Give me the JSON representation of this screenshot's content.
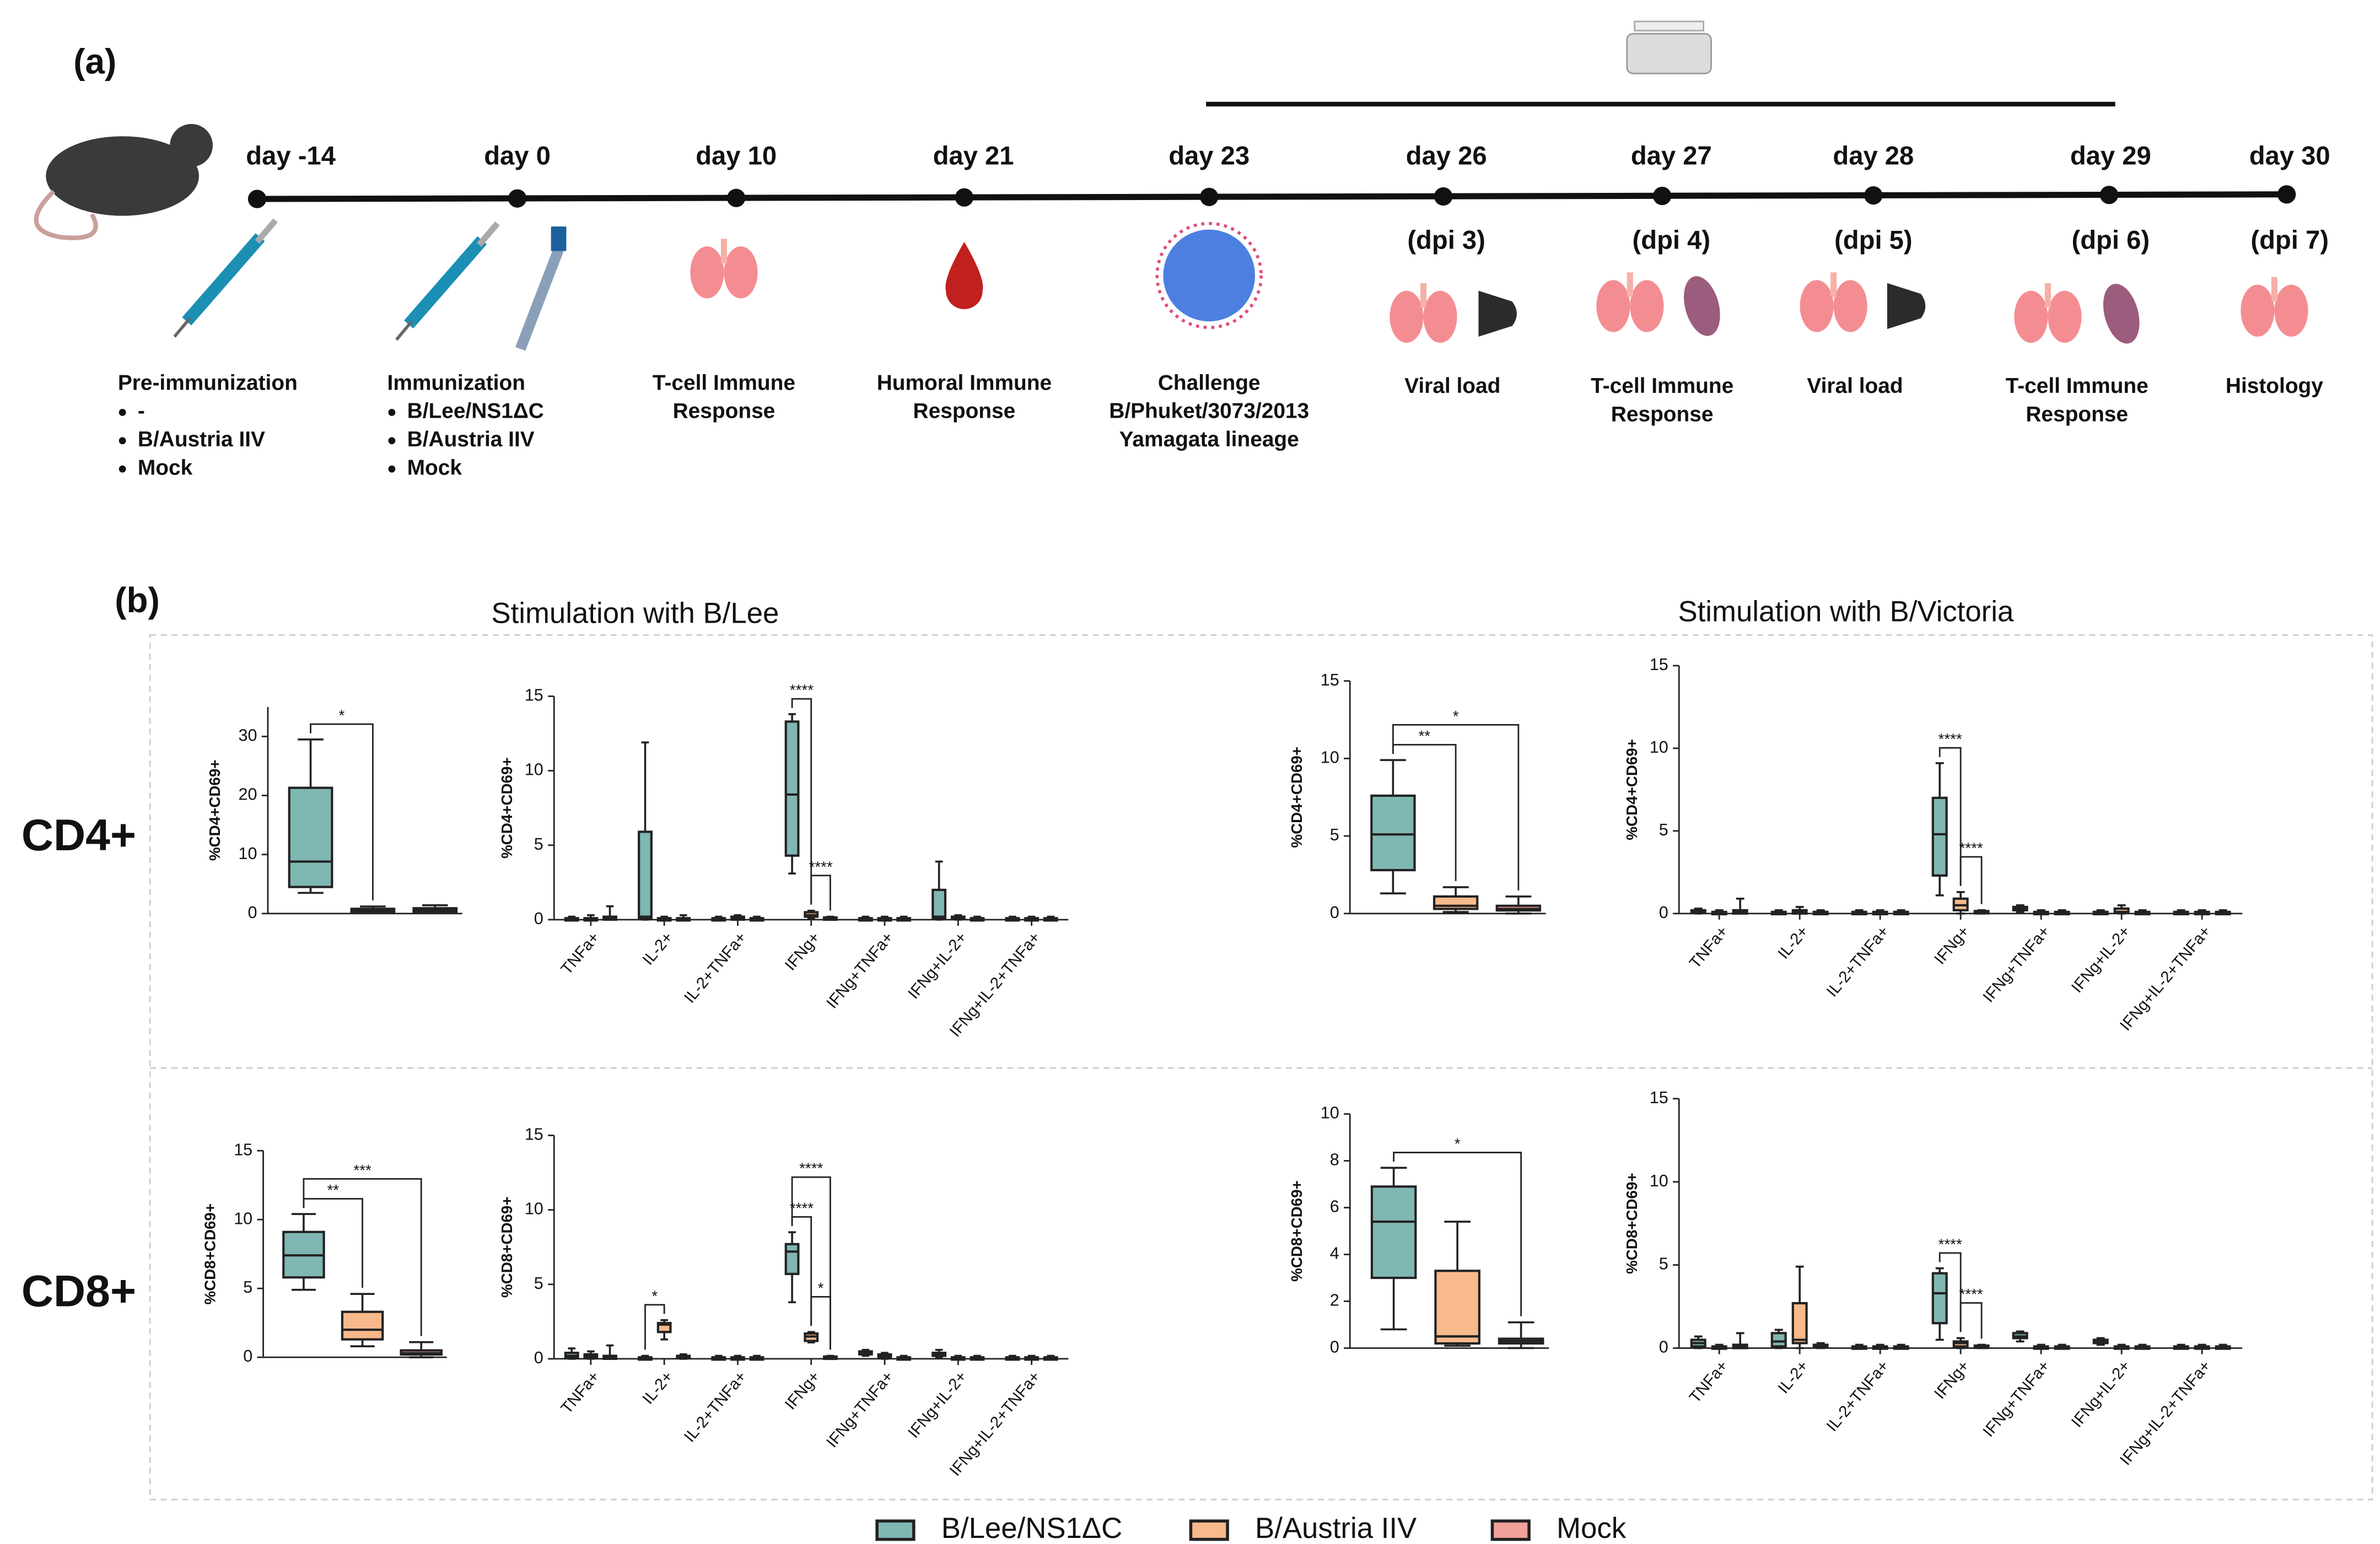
{
  "panel_labels": [
    "(a)",
    "(b)"
  ],
  "timeline": {
    "events": [
      {
        "day": "day -14",
        "lines": [
          "Pre-immunization"
        ],
        "bullets": [
          "-",
          "B/Austria IIV",
          "Mock"
        ]
      },
      {
        "day": "day 0",
        "lines": [
          "Immunization"
        ],
        "bullets": [
          "B/Lee/NS1ΔC",
          "B/Austria IIV",
          "Mock"
        ]
      },
      {
        "day": "day 10",
        "lines": [
          "T-cell Immune",
          "Response"
        ]
      },
      {
        "day": "day 21",
        "lines": [
          "Humoral  Immune",
          "Response"
        ]
      },
      {
        "day": "day 23",
        "lines": [
          "Challenge",
          "B/Phuket/3073/2013",
          "Yamagata lineage"
        ]
      },
      {
        "day": "day 26",
        "dpi": "(dpi 3)",
        "lines": [
          "Viral load"
        ]
      },
      {
        "day": "day 27",
        "dpi": "(dpi 4)",
        "lines": [
          "T-cell Immune",
          "Response"
        ]
      },
      {
        "day": "day 28",
        "dpi": "(dpi 5)",
        "lines": [
          "Viral load"
        ]
      },
      {
        "day": "day 29",
        "dpi": "(dpi 6)",
        "lines": [
          "T-cell Immune",
          "Response"
        ]
      },
      {
        "day": "day 30",
        "dpi": "(dpi 7)",
        "lines": [
          "Histology"
        ]
      }
    ]
  },
  "column_titles": [
    "Stimulation with B/Lee",
    "Stimulation with B/Victoria"
  ],
  "row_labels": [
    "CD4+",
    "CD8+"
  ],
  "legend": [
    {
      "name": "B/Lee/NS1ΔC",
      "color": "#7fb7b3"
    },
    {
      "name": "B/Austria IIV",
      "color": "#f8b98b"
    },
    {
      "name": "Mock",
      "color": "#f2a19b"
    }
  ],
  "chart_data": [
    {
      "type": "box",
      "ylabel": "%CD4+CD69+",
      "ylim": [
        0,
        35
      ],
      "yticks": [
        0,
        10,
        20,
        30
      ],
      "series": [
        {
          "values": [
            [
              3.5,
              4.5,
              8.8,
              21.3,
              29.5
            ]
          ]
        },
        {
          "values": [
            [
              0.1,
              0.3,
              0.5,
              0.8,
              1.2
            ]
          ]
        },
        {
          "values": [
            [
              0.1,
              0.3,
              0.6,
              0.9,
              1.4
            ]
          ]
        }
      ],
      "annotations": [
        {
          "text": "*",
          "category": 0,
          "groups": [
            0,
            1
          ]
        }
      ]
    },
    {
      "type": "box",
      "ylabel": "%CD4+CD69+",
      "ylim": [
        0,
        15
      ],
      "yticks": [
        0,
        5,
        10,
        15
      ],
      "categories": [
        "TNFa+",
        "IL-2+",
        "IL-2+TNFa+",
        "IFNg+",
        "IFNg+TNFa+",
        "IFNg+IL-2+",
        "IFNg+IL-2+TNFa+"
      ],
      "series": [
        {
          "values": [
            [
              0,
              0,
              0.05,
              0.1,
              0.2
            ],
            [
              0,
              0.1,
              0.2,
              5.9,
              11.9
            ],
            [
              0,
              0,
              0.05,
              0.1,
              0.2
            ],
            [
              3.1,
              4.3,
              8.4,
              13.3,
              13.8
            ],
            [
              0,
              0,
              0.05,
              0.1,
              0.2
            ],
            [
              0,
              0.1,
              0.2,
              2,
              3.9
            ],
            [
              0,
              0,
              0.05,
              0.1,
              0.2
            ]
          ]
        },
        {
          "values": [
            [
              0,
              0,
              0.05,
              0.1,
              0.3
            ],
            [
              0,
              0,
              0.05,
              0.1,
              0.2
            ],
            [
              0,
              0,
              0.1,
              0.2,
              0.3
            ],
            [
              0.1,
              0.2,
              0.3,
              0.5,
              0.6
            ],
            [
              0,
              0,
              0.05,
              0.1,
              0.2
            ],
            [
              0,
              0.05,
              0.1,
              0.2,
              0.3
            ],
            [
              0,
              0,
              0.05,
              0.1,
              0.2
            ]
          ]
        },
        {
          "values": [
            [
              0,
              0,
              0.1,
              0.2,
              0.9
            ],
            [
              0,
              0,
              0.05,
              0.1,
              0.3
            ],
            [
              0,
              0,
              0.05,
              0.1,
              0.2
            ],
            [
              0,
              0.05,
              0.1,
              0.15,
              0.2
            ],
            [
              0,
              0,
              0.05,
              0.1,
              0.2
            ],
            [
              0,
              0,
              0.05,
              0.1,
              0.2
            ],
            [
              0,
              0,
              0.05,
              0.1,
              0.2
            ]
          ]
        }
      ],
      "annotations": [
        {
          "text": "****",
          "category": 3,
          "groups": [
            0,
            1
          ]
        },
        {
          "text": "****",
          "category": 3,
          "groups": [
            1,
            2
          ]
        }
      ]
    },
    {
      "type": "box",
      "ylabel": "%CD4+CD69+",
      "ylim": [
        0,
        15
      ],
      "yticks": [
        0,
        5,
        10,
        15
      ],
      "series": [
        {
          "values": [
            [
              1.3,
              2.8,
              5.1,
              7.6,
              9.9
            ]
          ]
        },
        {
          "values": [
            [
              0.1,
              0.3,
              0.5,
              1.1,
              1.7
            ]
          ]
        },
        {
          "values": [
            [
              0,
              0.2,
              0.3,
              0.5,
              1.1
            ]
          ]
        }
      ],
      "annotations": [
        {
          "text": "**",
          "category": 0,
          "groups": [
            0,
            1
          ]
        },
        {
          "text": "*",
          "category": 0,
          "groups": [
            0,
            2
          ]
        }
      ]
    },
    {
      "type": "box",
      "ylabel": "%CD4+CD69+",
      "ylim": [
        0,
        15
      ],
      "yticks": [
        0,
        5,
        10,
        15
      ],
      "categories": [
        "TNFa+",
        "IL-2+",
        "IL-2+TNFa+",
        "IFNg+",
        "IFNg+TNFa+",
        "IFNg+IL-2+",
        "IFNg+IL-2+TNFa+"
      ],
      "series": [
        {
          "values": [
            [
              0,
              0.05,
              0.1,
              0.2,
              0.3
            ],
            [
              0,
              0,
              0.05,
              0.1,
              0.2
            ],
            [
              0,
              0,
              0.05,
              0.1,
              0.2
            ],
            [
              1.1,
              2.3,
              4.8,
              7,
              9.1
            ],
            [
              0.1,
              0.2,
              0.3,
              0.4,
              0.5
            ],
            [
              0,
              0,
              0.05,
              0.1,
              0.2
            ],
            [
              0,
              0,
              0.05,
              0.1,
              0.2
            ]
          ]
        },
        {
          "values": [
            [
              0,
              0,
              0.05,
              0.1,
              0.2
            ],
            [
              0,
              0,
              0.1,
              0.2,
              0.4
            ],
            [
              0,
              0,
              0.05,
              0.1,
              0.2
            ],
            [
              0,
              0.2,
              0.5,
              0.9,
              1.3
            ],
            [
              0,
              0,
              0.05,
              0.1,
              0.2
            ],
            [
              0,
              0.05,
              0.1,
              0.3,
              0.5
            ],
            [
              0,
              0,
              0.05,
              0.1,
              0.2
            ]
          ]
        },
        {
          "values": [
            [
              0,
              0,
              0.1,
              0.2,
              0.9
            ],
            [
              0,
              0,
              0.05,
              0.1,
              0.2
            ],
            [
              0,
              0,
              0.05,
              0.1,
              0.2
            ],
            [
              0,
              0.05,
              0.1,
              0.15,
              0.2
            ],
            [
              0,
              0,
              0.05,
              0.1,
              0.2
            ],
            [
              0,
              0,
              0.05,
              0.1,
              0.2
            ],
            [
              0,
              0,
              0.05,
              0.1,
              0.2
            ]
          ]
        }
      ],
      "annotations": [
        {
          "text": "****",
          "category": 3,
          "groups": [
            0,
            1
          ]
        },
        {
          "text": "****",
          "category": 3,
          "groups": [
            1,
            2
          ]
        }
      ]
    },
    {
      "type": "box",
      "ylabel": "%CD8+CD69+",
      "ylim": [
        0,
        15
      ],
      "yticks": [
        0,
        5,
        10,
        15
      ],
      "series": [
        {
          "values": [
            [
              4.9,
              5.8,
              7.4,
              9.1,
              10.4
            ]
          ]
        },
        {
          "values": [
            [
              0.8,
              1.3,
              2,
              3.3,
              4.6
            ]
          ]
        },
        {
          "values": [
            [
              0,
              0.2,
              0.3,
              0.5,
              1.1
            ]
          ]
        }
      ],
      "annotations": [
        {
          "text": "**",
          "category": 0,
          "groups": [
            0,
            1
          ]
        },
        {
          "text": "***",
          "category": 0,
          "groups": [
            0,
            2
          ]
        }
      ]
    },
    {
      "type": "box",
      "ylabel": "%CD8+CD69+",
      "ylim": [
        0,
        15
      ],
      "yticks": [
        0,
        5,
        10,
        15
      ],
      "categories": [
        "TNFa+",
        "IL-2+",
        "IL-2+TNFa+",
        "IFNg+",
        "IFNg+TNFa+",
        "IFNg+IL-2+",
        "IFNg+IL-2+TNFa+"
      ],
      "series": [
        {
          "values": [
            [
              0,
              0.1,
              0.2,
              0.4,
              0.7
            ],
            [
              0,
              0,
              0.05,
              0.1,
              0.2
            ],
            [
              0,
              0,
              0.05,
              0.1,
              0.2
            ],
            [
              3.8,
              5.7,
              7.2,
              7.7,
              8.5
            ],
            [
              0.2,
              0.3,
              0.4,
              0.5,
              0.6
            ],
            [
              0.1,
              0.2,
              0.3,
              0.4,
              0.6
            ],
            [
              0,
              0,
              0.05,
              0.1,
              0.2
            ]
          ]
        },
        {
          "values": [
            [
              0,
              0.1,
              0.2,
              0.3,
              0.5
            ],
            [
              1.3,
              1.8,
              2.3,
              2.4,
              2.6
            ],
            [
              0,
              0,
              0.05,
              0.1,
              0.2
            ],
            [
              1.1,
              1.2,
              1.5,
              1.7,
              1.8
            ],
            [
              0,
              0.1,
              0.2,
              0.3,
              0.4
            ],
            [
              0,
              0,
              0.05,
              0.1,
              0.2
            ],
            [
              0,
              0,
              0.05,
              0.1,
              0.2
            ]
          ]
        },
        {
          "values": [
            [
              0,
              0,
              0.1,
              0.2,
              0.9
            ],
            [
              0,
              0.05,
              0.1,
              0.2,
              0.3
            ],
            [
              0,
              0,
              0.05,
              0.1,
              0.2
            ],
            [
              0,
              0.05,
              0.1,
              0.15,
              0.2
            ],
            [
              0,
              0,
              0.05,
              0.1,
              0.2
            ],
            [
              0,
              0,
              0.05,
              0.1,
              0.2
            ],
            [
              0,
              0,
              0.05,
              0.1,
              0.2
            ]
          ]
        }
      ],
      "annotations": [
        {
          "text": "*",
          "category": 1,
          "groups": [
            0,
            1
          ]
        },
        {
          "text": "****",
          "category": 3,
          "groups": [
            0,
            1
          ]
        },
        {
          "text": "*",
          "category": 3,
          "groups": [
            1,
            2
          ]
        },
        {
          "text": "****",
          "category": 3,
          "groups": [
            0,
            2
          ]
        }
      ]
    },
    {
      "type": "box",
      "ylabel": "%CD8+CD69+",
      "ylim": [
        0,
        10
      ],
      "yticks": [
        0,
        2,
        4,
        6,
        8,
        10
      ],
      "series": [
        {
          "values": [
            [
              0.8,
              3,
              5.4,
              6.9,
              7.7
            ]
          ]
        },
        {
          "values": [
            [
              0.1,
              0.2,
              0.5,
              3.3,
              5.4
            ]
          ]
        },
        {
          "values": [
            [
              0,
              0.2,
              0.3,
              0.4,
              1.1
            ]
          ]
        }
      ],
      "annotations": [
        {
          "text": "*",
          "category": 0,
          "groups": [
            0,
            2
          ]
        }
      ]
    },
    {
      "type": "box",
      "ylabel": "%CD8+CD69+",
      "ylim": [
        0,
        15
      ],
      "yticks": [
        0,
        5,
        10,
        15
      ],
      "categories": [
        "TNFa+",
        "IL-2+",
        "IL-2+TNFa+",
        "IFNg+",
        "IFNg+TNFa+",
        "IFNg+IL-2+",
        "IFNg+IL-2+TNFa+"
      ],
      "series": [
        {
          "values": [
            [
              0,
              0.1,
              0.3,
              0.5,
              0.7
            ],
            [
              0,
              0.1,
              0.4,
              0.9,
              1.1
            ],
            [
              0,
              0,
              0.05,
              0.1,
              0.2
            ],
            [
              0.5,
              1.5,
              3.3,
              4.5,
              4.8
            ],
            [
              0.4,
              0.6,
              0.7,
              0.9,
              1
            ],
            [
              0.2,
              0.3,
              0.4,
              0.5,
              0.6
            ],
            [
              0,
              0,
              0.05,
              0.1,
              0.2
            ]
          ]
        },
        {
          "values": [
            [
              0,
              0,
              0.05,
              0.1,
              0.2
            ],
            [
              0,
              0.3,
              0.5,
              2.7,
              4.9
            ],
            [
              0,
              0,
              0.05,
              0.1,
              0.2
            ],
            [
              0,
              0.1,
              0.3,
              0.4,
              0.6
            ],
            [
              0,
              0,
              0.05,
              0.1,
              0.2
            ],
            [
              0,
              0,
              0.05,
              0.1,
              0.2
            ],
            [
              0,
              0,
              0.05,
              0.1,
              0.2
            ]
          ]
        },
        {
          "values": [
            [
              0,
              0,
              0.1,
              0.2,
              0.9
            ],
            [
              0,
              0.05,
              0.1,
              0.2,
              0.3
            ],
            [
              0,
              0,
              0.05,
              0.1,
              0.2
            ],
            [
              0,
              0.05,
              0.1,
              0.15,
              0.2
            ],
            [
              0,
              0,
              0.05,
              0.1,
              0.2
            ],
            [
              0,
              0,
              0.05,
              0.1,
              0.2
            ],
            [
              0,
              0,
              0.05,
              0.1,
              0.2
            ]
          ]
        }
      ],
      "annotations": [
        {
          "text": "****",
          "category": 3,
          "groups": [
            0,
            1
          ]
        },
        {
          "text": "****",
          "category": 3,
          "groups": [
            1,
            2
          ]
        }
      ]
    }
  ]
}
